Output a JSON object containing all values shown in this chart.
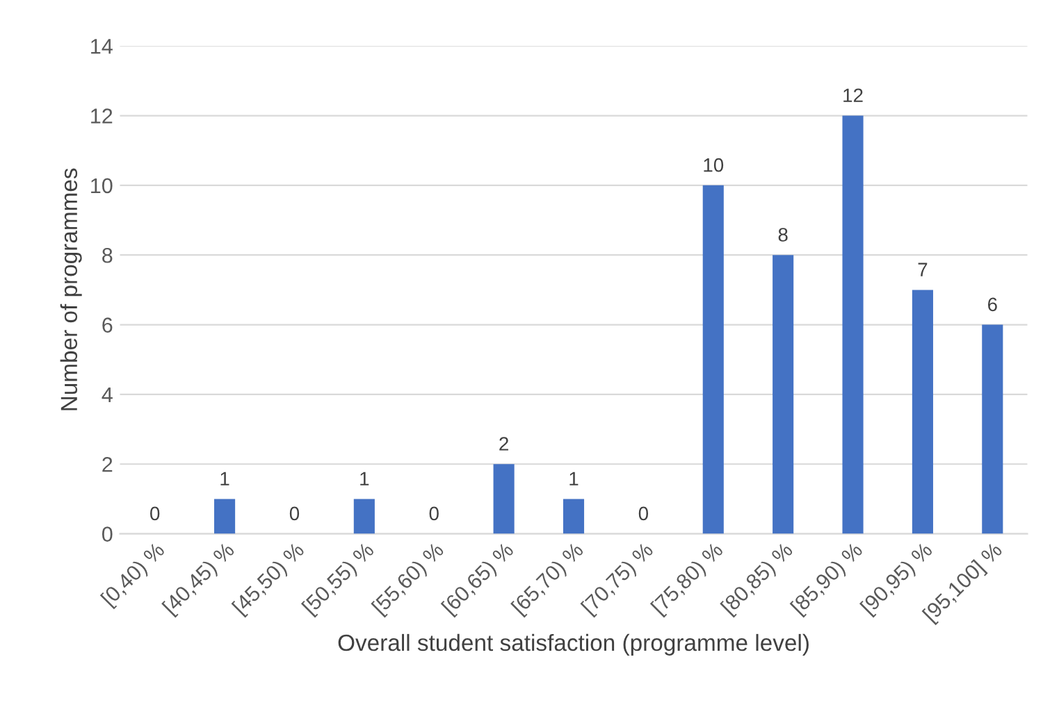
{
  "chart_data": {
    "type": "bar",
    "xlabel": "Overall student satisfaction (programme level)",
    "ylabel": "Number of programmes",
    "categories": [
      "[0,40) %",
      "[40,45) %",
      "[45,50) %",
      "[50,55) %",
      "[55,60) %",
      "[60,65) %",
      "[65,70) %",
      "[70,75) %",
      "[75,80) %",
      "[80,85) %",
      "[85,90) %",
      "[90,95) %",
      "[95,100] %"
    ],
    "values": [
      0,
      1,
      0,
      1,
      0,
      2,
      1,
      0,
      10,
      8,
      12,
      7,
      6
    ],
    "color": "#4472c4",
    "ylim": [
      0,
      14
    ],
    "yticks": [
      0,
      2,
      4,
      6,
      8,
      10,
      12,
      14
    ],
    "grid": "y",
    "data_labels": true
  }
}
